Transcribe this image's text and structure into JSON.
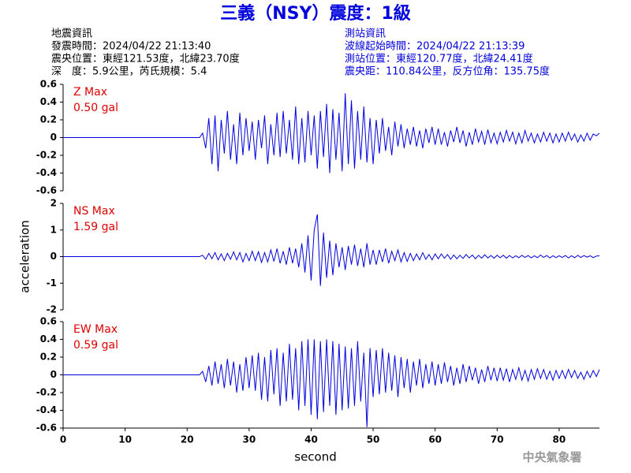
{
  "title": "三義（NSY）震度：1級",
  "header": {
    "left": [
      "地震資訊",
      "發震時間：2024/04/22 21:13:40",
      "震央位置：東經121.53度，北緯23.70度",
      "深　度：5.9公里，芮氏規模：5.4"
    ],
    "right": [
      "測站資訊",
      "波線起始時間：2024/04/22 21:13:39",
      "測站位置：東經120.77度，北緯24.41度",
      "震央距：110.84公里，反方位角：135.75度"
    ]
  },
  "footer": "中央氣象署",
  "chart_data": [
    {
      "type": "line",
      "annotation": "Z Max",
      "max_label": "0.50 gal",
      "color": "#0000dd",
      "xlim": [
        0,
        86.5
      ],
      "ylim": [
        -0.6,
        0.6
      ],
      "yticks": [
        -0.6,
        -0.4,
        -0.2,
        0,
        0.2,
        0.4,
        0.6
      ],
      "x": [
        0,
        10,
        20,
        22,
        22.5,
        23,
        23.5,
        24,
        24.5,
        25,
        25.5,
        26,
        26.5,
        27,
        27.5,
        28,
        28.5,
        29,
        29.5,
        30,
        30.5,
        31,
        31.5,
        32,
        32.5,
        33,
        33.5,
        34,
        34.5,
        35,
        35.5,
        36,
        36.5,
        37,
        37.5,
        38,
        38.5,
        39,
        39.5,
        40,
        40.5,
        41,
        41.5,
        42,
        42.5,
        43,
        43.5,
        44,
        44.5,
        45,
        45.5,
        46,
        46.5,
        47,
        47.5,
        48,
        48.5,
        49,
        49.5,
        50,
        50.5,
        51,
        51.5,
        52,
        52.5,
        53,
        53.5,
        54,
        54.5,
        55,
        55.5,
        56,
        56.5,
        57,
        57.5,
        58,
        58.5,
        59,
        59.5,
        60,
        60.5,
        61,
        61.5,
        62,
        62.5,
        63,
        63.5,
        64,
        64.5,
        65,
        65.5,
        66,
        66.5,
        67,
        67.5,
        68,
        68.5,
        69,
        69.5,
        70,
        70.5,
        71,
        71.5,
        72,
        72.5,
        73,
        73.5,
        74,
        74.5,
        75,
        75.5,
        76,
        76.5,
        77,
        77.5,
        78,
        78.5,
        79,
        79.5,
        80,
        80.5,
        81,
        81.5,
        82,
        82.5,
        83,
        83.5,
        84,
        84.5,
        85,
        85.5,
        86,
        86.5
      ],
      "values": [
        0,
        0,
        0,
        0,
        0.05,
        -0.12,
        0.22,
        -0.3,
        0.25,
        -0.38,
        0.2,
        -0.18,
        0.3,
        -0.25,
        0.15,
        -0.3,
        0.28,
        -0.2,
        0.22,
        -0.15,
        0.18,
        -0.25,
        0.2,
        -0.12,
        0.25,
        -0.3,
        0.15,
        -0.2,
        0.28,
        -0.22,
        0.3,
        -0.18,
        0.2,
        -0.25,
        0.35,
        -0.3,
        0.22,
        -0.28,
        0.3,
        -0.2,
        0.25,
        -0.35,
        0.3,
        -0.22,
        0.38,
        -0.4,
        0.32,
        -0.25,
        0.28,
        -0.38,
        0.5,
        -0.3,
        0.42,
        -0.35,
        0.3,
        -0.25,
        0.35,
        -0.28,
        0.22,
        -0.3,
        0.2,
        -0.18,
        0.22,
        -0.15,
        0.12,
        -0.2,
        0.18,
        -0.1,
        0.15,
        -0.12,
        0.1,
        -0.08,
        0.12,
        -0.1,
        0.08,
        -0.12,
        0.1,
        -0.06,
        0.12,
        -0.08,
        0.1,
        -0.08,
        0.06,
        -0.1,
        0.08,
        -0.05,
        0.12,
        -0.06,
        0.08,
        -0.1,
        0.06,
        -0.08,
        0.1,
        -0.05,
        0.07,
        -0.08,
        0.09,
        -0.06,
        0.05,
        -0.07,
        0.06,
        -0.05,
        0.08,
        -0.04,
        0.06,
        -0.07,
        0.05,
        -0.06,
        0.08,
        -0.04,
        0.05,
        -0.06,
        0.04,
        -0.05,
        0.06,
        -0.04,
        0.05,
        -0.06,
        0.04,
        -0.05,
        0.05,
        -0.04,
        0.06,
        -0.03,
        0.04,
        -0.05,
        0.03,
        -0.04,
        0.05,
        -0.03,
        0.04,
        0.02,
        0.05
      ]
    },
    {
      "type": "line",
      "annotation": "NS Max",
      "max_label": "1.59 gal",
      "color": "#0000dd",
      "ylabel": "acceleration",
      "xlim": [
        0,
        86.5
      ],
      "ylim": [
        -2,
        2
      ],
      "yticks": [
        -2,
        -1,
        0,
        1,
        2
      ],
      "x": [
        0,
        10,
        20,
        22,
        22.5,
        23,
        23.5,
        24,
        24.5,
        25,
        25.5,
        26,
        26.5,
        27,
        27.5,
        28,
        28.5,
        29,
        29.5,
        30,
        30.5,
        31,
        31.5,
        32,
        32.5,
        33,
        33.5,
        34,
        34.5,
        35,
        35.5,
        36,
        36.5,
        37,
        37.5,
        38,
        38.5,
        39,
        39.5,
        40,
        40.5,
        41,
        41.5,
        42,
        42.5,
        43,
        43.5,
        44,
        44.5,
        45,
        45.5,
        46,
        46.5,
        47,
        47.5,
        48,
        48.5,
        49,
        49.5,
        50,
        50.5,
        51,
        51.5,
        52,
        52.5,
        53,
        53.5,
        54,
        54.5,
        55,
        55.5,
        56,
        56.5,
        57,
        57.5,
        58,
        58.5,
        59,
        59.5,
        60,
        60.5,
        61,
        61.5,
        62,
        62.5,
        63,
        63.5,
        64,
        64.5,
        65,
        65.5,
        66,
        66.5,
        67,
        67.5,
        68,
        68.5,
        69,
        69.5,
        70,
        70.5,
        71,
        71.5,
        72,
        72.5,
        73,
        73.5,
        74,
        74.5,
        75,
        75.5,
        76,
        76.5,
        77,
        77.5,
        78,
        78.5,
        79,
        79.5,
        80,
        80.5,
        81,
        81.5,
        82,
        82.5,
        83,
        83.5,
        84,
        84.5,
        85,
        85.5,
        86,
        86.5
      ],
      "values": [
        0,
        0,
        0,
        0,
        0.05,
        -0.1,
        0.12,
        -0.08,
        0.15,
        -0.12,
        0.1,
        -0.15,
        0.12,
        -0.1,
        0.18,
        -0.12,
        0.15,
        -0.2,
        0.12,
        -0.15,
        0.2,
        -0.15,
        0.18,
        -0.22,
        0.15,
        -0.2,
        0.25,
        -0.18,
        0.3,
        -0.25,
        0.2,
        -0.3,
        0.35,
        -0.25,
        0.3,
        -0.4,
        0.5,
        -0.6,
        0.8,
        -0.9,
        1.0,
        1.59,
        -1.1,
        0.9,
        -0.8,
        0.6,
        -0.7,
        0.5,
        -0.4,
        0.35,
        -0.5,
        0.4,
        -0.3,
        0.45,
        -0.35,
        0.3,
        -0.4,
        0.5,
        -0.3,
        0.25,
        -0.3,
        0.25,
        -0.2,
        0.3,
        -0.25,
        0.2,
        -0.15,
        0.25,
        -0.2,
        0.15,
        -0.18,
        0.12,
        -0.15,
        0.1,
        -0.12,
        0.15,
        -0.1,
        0.08,
        -0.12,
        0.1,
        -0.08,
        0.1,
        -0.06,
        0.08,
        -0.1,
        0.06,
        -0.08,
        0.05,
        -0.07,
        0.08,
        -0.05,
        0.06,
        -0.08,
        0.05,
        -0.06,
        0.07,
        -0.05,
        0.04,
        -0.06,
        0.05,
        -0.04,
        0.05,
        -0.06,
        0.04,
        -0.05,
        0.03,
        -0.04,
        0.05,
        -0.03,
        0.04,
        -0.05,
        0.03,
        -0.04,
        0.06,
        -0.03,
        0.04,
        -0.05,
        0.03,
        -0.04,
        0.03,
        -0.03,
        0.04,
        -0.05,
        0.03,
        -0.04,
        0.05,
        -0.03,
        0.04,
        -0.02,
        0.03,
        -0.04,
        0.02,
        0.03
      ]
    },
    {
      "type": "line",
      "annotation": "EW Max",
      "max_label": "0.59 gal",
      "color": "#0000dd",
      "xlabel": "second",
      "xlim": [
        0,
        86.5
      ],
      "xticks": [
        0,
        10,
        20,
        30,
        40,
        50,
        60,
        70,
        80
      ],
      "ylim": [
        -0.6,
        0.6
      ],
      "yticks": [
        -0.6,
        -0.4,
        -0.2,
        0,
        0.2,
        0.4,
        0.6
      ],
      "x": [
        0,
        10,
        20,
        22,
        22.5,
        23,
        23.5,
        24,
        24.5,
        25,
        25.5,
        26,
        26.5,
        27,
        27.5,
        28,
        28.5,
        29,
        29.5,
        30,
        30.5,
        31,
        31.5,
        32,
        32.5,
        33,
        33.5,
        34,
        34.5,
        35,
        35.5,
        36,
        36.5,
        37,
        37.5,
        38,
        38.5,
        39,
        39.5,
        40,
        40.5,
        41,
        41.5,
        42,
        42.5,
        43,
        43.5,
        44,
        44.5,
        45,
        45.5,
        46,
        46.5,
        47,
        47.5,
        48,
        48.5,
        49,
        49.5,
        50,
        50.5,
        51,
        51.5,
        52,
        52.5,
        53,
        53.5,
        54,
        54.5,
        55,
        55.5,
        56,
        56.5,
        57,
        57.5,
        58,
        58.5,
        59,
        59.5,
        60,
        60.5,
        61,
        61.5,
        62,
        62.5,
        63,
        63.5,
        64,
        64.5,
        65,
        65.5,
        66,
        66.5,
        67,
        67.5,
        68,
        68.5,
        69,
        69.5,
        70,
        70.5,
        71,
        71.5,
        72,
        72.5,
        73,
        73.5,
        74,
        74.5,
        75,
        75.5,
        76,
        76.5,
        77,
        77.5,
        78,
        78.5,
        79,
        79.5,
        80,
        80.5,
        81,
        81.5,
        82,
        82.5,
        83,
        83.5,
        84,
        84.5,
        85,
        85.5,
        86,
        86.5
      ],
      "values": [
        0,
        0,
        0,
        0,
        0.04,
        -0.08,
        0.1,
        -0.12,
        0.15,
        -0.1,
        0.12,
        -0.15,
        0.18,
        -0.12,
        0.15,
        -0.2,
        0.12,
        -0.18,
        0.2,
        -0.15,
        0.22,
        -0.18,
        0.25,
        -0.28,
        0.2,
        -0.3,
        0.28,
        -0.22,
        0.3,
        -0.35,
        0.25,
        -0.3,
        0.35,
        -0.28,
        0.3,
        -0.4,
        0.38,
        -0.35,
        0.4,
        -0.45,
        0.4,
        -0.5,
        0.38,
        -0.42,
        0.4,
        -0.35,
        0.38,
        -0.45,
        0.35,
        -0.4,
        0.32,
        -0.38,
        0.3,
        -0.35,
        0.38,
        -0.3,
        0.25,
        -0.59,
        0.3,
        -0.25,
        0.28,
        -0.22,
        0.3,
        -0.2,
        0.25,
        -0.18,
        0.22,
        -0.25,
        0.2,
        -0.15,
        0.18,
        -0.2,
        0.15,
        -0.12,
        0.18,
        -0.15,
        0.12,
        -0.1,
        0.15,
        -0.12,
        0.12,
        -0.1,
        0.14,
        -0.08,
        0.1,
        -0.12,
        0.08,
        -0.1,
        0.12,
        -0.08,
        0.1,
        -0.06,
        0.08,
        -0.1,
        0.06,
        -0.08,
        0.1,
        -0.06,
        0.08,
        -0.07,
        0.08,
        -0.06,
        0.07,
        -0.08,
        0.06,
        -0.05,
        0.08,
        -0.06,
        0.05,
        -0.07,
        0.06,
        -0.05,
        0.07,
        -0.04,
        0.06,
        -0.05,
        0.04,
        -0.06,
        0.05,
        -0.04,
        0.05,
        -0.04,
        0.06,
        -0.03,
        0.05,
        -0.04,
        0.03,
        -0.05,
        0.04,
        -0.03,
        0.05,
        -0.02,
        0.06
      ]
    }
  ]
}
